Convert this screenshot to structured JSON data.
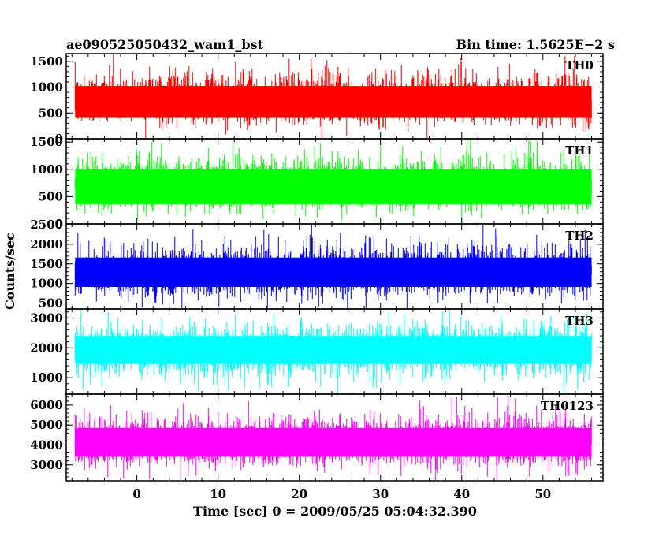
{
  "header": {
    "left": "ae090525050432_wam1_bst",
    "right": "Bin time: 1.5625E−2 s"
  },
  "axes": {
    "ylabel": "Counts/sec",
    "xlabel": "Time [sec] 0 = 2009/05/25 05:04:32.390"
  },
  "chart_data": {
    "type": "line",
    "xlim": [
      -8.7,
      57.4
    ],
    "x_range": [
      -7.6,
      56.0
    ],
    "xticks": [
      0,
      10,
      20,
      30,
      40,
      50
    ],
    "xtick_labels": [
      "0",
      "10",
      "20",
      "30",
      "40",
      "50"
    ],
    "grid": false,
    "legend": "none",
    "panels": [
      {
        "name": "TH0",
        "color": "#ff0000",
        "ylim": [
          0,
          1650
        ],
        "yticks": [
          0,
          500,
          1000,
          1500
        ],
        "ytick_labels": [
          "0",
          "500",
          "1000",
          "1500"
        ],
        "baseline": 300,
        "mean": 720,
        "max": 1600
      },
      {
        "name": "TH1",
        "color": "#00ff00",
        "ylim": [
          0,
          1560
        ],
        "yticks": [
          0,
          500,
          1000,
          1500
        ],
        "ytick_labels": [
          "0",
          "500",
          "1000",
          "1500"
        ],
        "baseline": 250,
        "mean": 700,
        "max": 1560
      },
      {
        "name": "TH2",
        "color": "#0000ff",
        "ylim": [
          350,
          2520
        ],
        "yticks": [
          500,
          1000,
          1500,
          2000,
          2500
        ],
        "ytick_labels": [
          "500",
          "1000",
          "1500",
          "2000",
          "2500"
        ],
        "baseline": 800,
        "mean": 1250,
        "max": 2450
      },
      {
        "name": "TH3",
        "color": "#00ffff",
        "ylim": [
          450,
          3300
        ],
        "yticks": [
          1000,
          2000,
          3000
        ],
        "ytick_labels": [
          "1000",
          "2000",
          "3000"
        ],
        "baseline": 1300,
        "mean": 1950,
        "max": 3250
      },
      {
        "name": "TH0123",
        "color": "#ff00ff",
        "ylim": [
          2200,
          6550
        ],
        "yticks": [
          3000,
          4000,
          5000,
          6000
        ],
        "ytick_labels": [
          "3000",
          "4000",
          "5000",
          "6000"
        ],
        "baseline": 3200,
        "mean": 4050,
        "max": 6400
      }
    ]
  }
}
